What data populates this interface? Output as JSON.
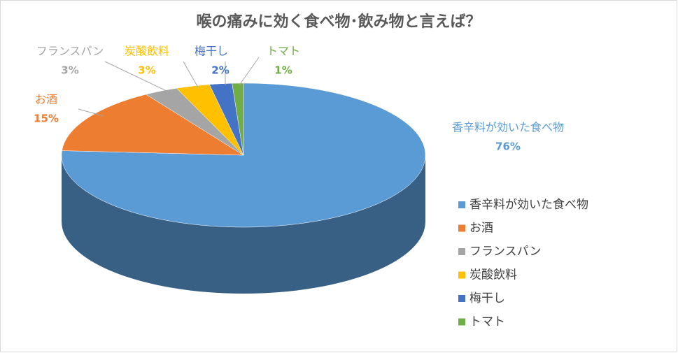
{
  "chart_data": {
    "type": "pie3d",
    "title": "喉の痛みに効く食べ物･飲み物と言えば？",
    "categories": [
      "香辛料が効いた食べ物",
      "お酒",
      "フランスパン",
      "炭酸飲料",
      "梅干し",
      "トマト"
    ],
    "values": [
      76,
      15,
      3,
      3,
      2,
      1
    ],
    "value_labels": [
      "76%",
      "15%",
      "3%",
      "3%",
      "2%",
      "1%"
    ],
    "colors": [
      "#5b9bd5",
      "#ed7d31",
      "#a5a5a5",
      "#ffc000",
      "#4472c4",
      "#70ad47"
    ],
    "legend": "right"
  }
}
